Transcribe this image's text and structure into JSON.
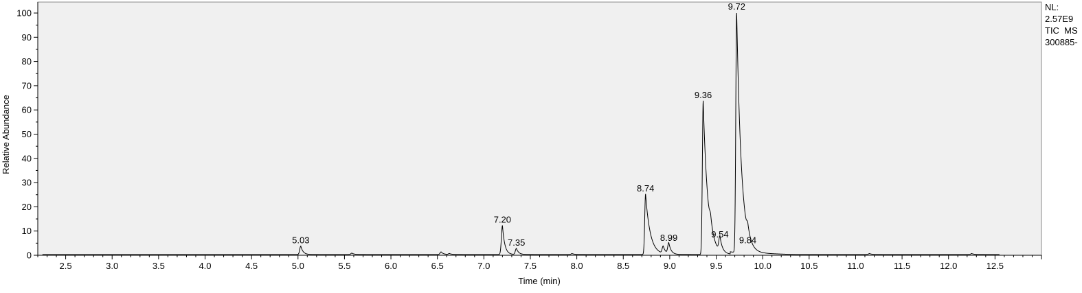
{
  "side_info": {
    "nl_label": "NL:",
    "nl_value": "2.57E9",
    "scan_filter": "TIC  MS",
    "sample": "300885-"
  },
  "chart_data": {
    "type": "line",
    "xlabel": "Time (min)",
    "ylabel": "Relative Abundance",
    "xlim": [
      2.2,
      13.0
    ],
    "ylim": [
      0,
      100
    ],
    "x_ticks": [
      "2.5",
      "3.0",
      "3.5",
      "4.0",
      "4.5",
      "5.0",
      "5.5",
      "6.0",
      "6.5",
      "7.0",
      "7.5",
      "8.0",
      "8.5",
      "9.0",
      "9.5",
      "10.0",
      "10.5",
      "11.0",
      "11.5",
      "12.0",
      "12.5"
    ],
    "y_ticks": [
      "0",
      "10",
      "20",
      "30",
      "40",
      "50",
      "60",
      "70",
      "80",
      "90",
      "100"
    ],
    "plot_background": "#f0f0f0",
    "line_color": "#000000",
    "grid": false,
    "peaks": [
      {
        "time": 5.03,
        "label": "5.03",
        "abundance": 3.5
      },
      {
        "time": 7.2,
        "label": "7.20",
        "abundance": 12
      },
      {
        "time": 7.35,
        "label": "7.35",
        "abundance": 2.5
      },
      {
        "time": 8.74,
        "label": "8.74",
        "abundance": 25
      },
      {
        "time": 8.99,
        "label": "8.99",
        "abundance": 4.5
      },
      {
        "time": 9.36,
        "label": "9.36",
        "abundance": 63.5
      },
      {
        "time": 9.54,
        "label": "9.54",
        "abundance": 6
      },
      {
        "time": 9.72,
        "label": "9.72",
        "abundance": 100
      },
      {
        "time": 9.84,
        "label": "9.84",
        "abundance": 3.5
      }
    ],
    "minor_peaks": [
      {
        "time": 5.58,
        "abundance": 0.6
      },
      {
        "time": 6.54,
        "abundance": 1.1
      },
      {
        "time": 6.63,
        "abundance": 0.4
      },
      {
        "time": 7.95,
        "abundance": 0.4
      },
      {
        "time": 8.93,
        "abundance": 3.0
      },
      {
        "time": 9.44,
        "abundance": 4.0
      },
      {
        "time": 11.15,
        "abundance": 0.4
      },
      {
        "time": 12.25,
        "abundance": 0.4
      }
    ]
  }
}
